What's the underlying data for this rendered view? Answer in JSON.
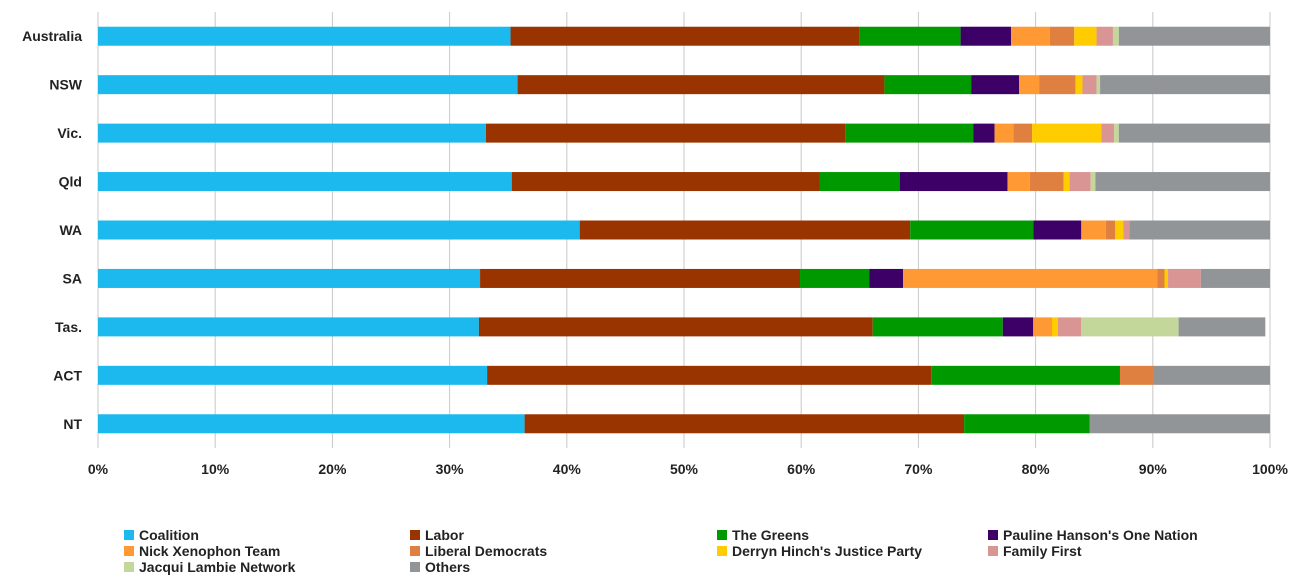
{
  "chart_data": {
    "type": "bar",
    "orientation": "horizontal",
    "stacked": true,
    "percent": true,
    "categories": [
      "Australia",
      "NSW",
      "Vic.",
      "Qld",
      "WA",
      "SA",
      "Tas.",
      "ACT",
      "NT"
    ],
    "xlim": [
      0,
      100
    ],
    "x_ticks": [
      "0%",
      "10%",
      "20%",
      "30%",
      "40%",
      "50%",
      "60%",
      "70%",
      "80%",
      "90%",
      "100%"
    ],
    "grid": "vertical",
    "legend_position": "bottom",
    "series": [
      {
        "name": "Coalition",
        "color": "#1BB9ED",
        "values": [
          35.2,
          35.8,
          33.1,
          35.3,
          41.1,
          32.6,
          32.5,
          33.2,
          36.4
        ]
      },
      {
        "name": "Labor",
        "color": "#993300",
        "values": [
          29.8,
          31.3,
          30.7,
          26.3,
          28.2,
          27.3,
          33.6,
          37.9,
          37.5
        ]
      },
      {
        "name": "The Greens",
        "color": "#009900",
        "values": [
          8.6,
          7.4,
          10.9,
          6.8,
          10.5,
          5.9,
          11.1,
          16.1,
          10.7
        ]
      },
      {
        "name": "Pauline Hanson's One Nation",
        "color": "#3D0066",
        "values": [
          4.3,
          4.1,
          1.8,
          9.2,
          4.1,
          2.9,
          2.6,
          0,
          0
        ]
      },
      {
        "name": "Nick Xenophon Team",
        "color": "#FF9933",
        "values": [
          3.3,
          1.7,
          1.6,
          1.9,
          2.1,
          21.7,
          1.6,
          0,
          0
        ]
      },
      {
        "name": "Liberal Democrats",
        "color": "#E08040",
        "values": [
          2.1,
          3.1,
          1.6,
          2.9,
          0.8,
          0.6,
          0,
          2.9,
          0
        ]
      },
      {
        "name": "Derryn Hinch's Justice Party",
        "color": "#FFCC00",
        "values": [
          1.9,
          0.6,
          5.9,
          0.5,
          0.7,
          0.3,
          0.5,
          0,
          0
        ]
      },
      {
        "name": "Family First",
        "color": "#D99594",
        "values": [
          1.4,
          1.2,
          1.1,
          1.8,
          0.5,
          2.8,
          2.0,
          0,
          0
        ]
      },
      {
        "name": "Jacqui Lambie Network",
        "color": "#C4D79B",
        "values": [
          0.5,
          0.3,
          0.4,
          0.4,
          0,
          0,
          8.3,
          0,
          0
        ]
      },
      {
        "name": "Others",
        "color": "#929598",
        "values": [
          12.9,
          14.5,
          12.9,
          14.9,
          12.0,
          5.9,
          7.4,
          9.9,
          15.4
        ]
      }
    ]
  }
}
